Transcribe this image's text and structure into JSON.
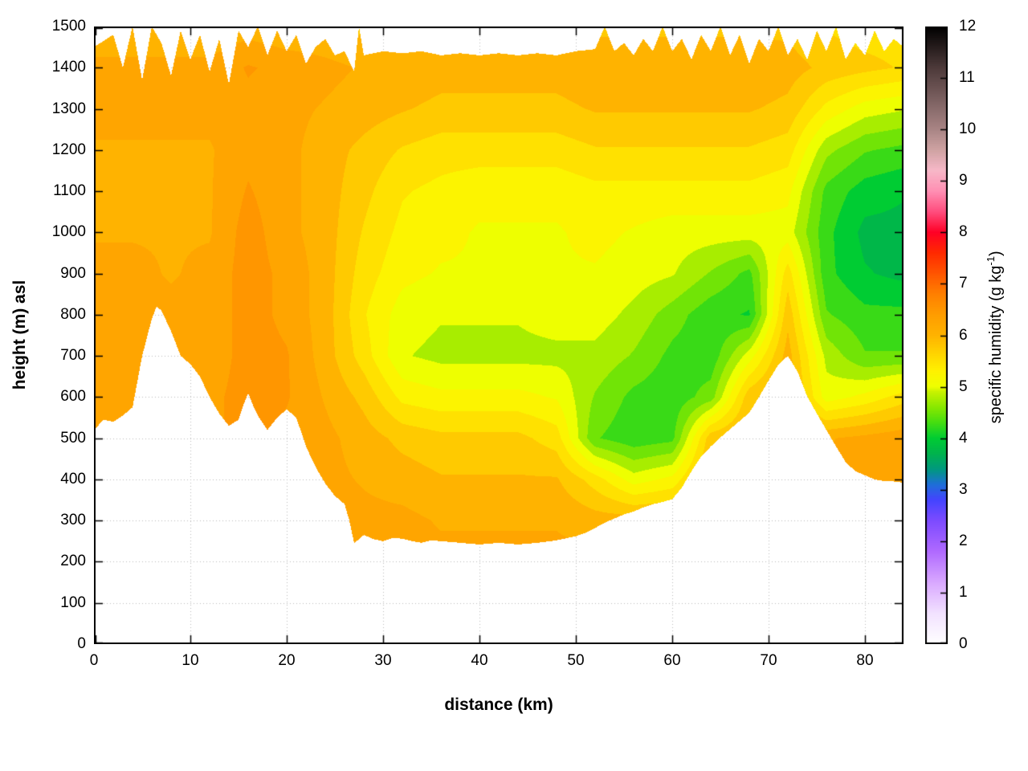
{
  "chart_data": {
    "type": "heatmap",
    "title": "",
    "xlabel": "distance (km)",
    "ylabel": "height (m) asl",
    "cblabel_prefix": "specific humidity (g kg",
    "cblabel_sup": "-1",
    "cblabel_suffix": ")",
    "xlim": [
      0,
      84
    ],
    "ylim": [
      0,
      1500
    ],
    "cblim": [
      0,
      12
    ],
    "grid": true,
    "legend_position": "right-colorbar",
    "x_ticks": [
      0,
      10,
      20,
      30,
      40,
      50,
      60,
      70,
      80
    ],
    "y_ticks": [
      0,
      100,
      200,
      300,
      400,
      500,
      600,
      700,
      800,
      900,
      1000,
      1100,
      1200,
      1300,
      1400,
      1500
    ],
    "cb_ticks": [
      0,
      1,
      2,
      3,
      4,
      5,
      6,
      7,
      8,
      9,
      10,
      11,
      12
    ],
    "band_interval_g_per_kg": 0.25,
    "x_km": [
      0,
      4,
      8,
      12,
      16,
      20,
      24,
      28,
      32,
      36,
      40,
      44,
      48,
      52,
      56,
      60,
      64,
      68,
      72,
      76,
      80,
      84
    ],
    "y_m": [
      0,
      100,
      200,
      300,
      400,
      500,
      600,
      700,
      800,
      900,
      1000,
      1100,
      1200,
      1300,
      1400,
      1500
    ],
    "humidity_g_per_kg": [
      [
        6.3,
        6.3,
        6.3,
        6.3,
        6.4,
        6.3,
        6.3,
        6.3,
        6.3,
        6.3,
        6.3,
        6.3,
        6.3,
        6.3,
        6.3,
        6.3,
        6.3,
        6.3,
        6.3,
        6.3,
        6.3,
        6.3
      ],
      [
        6.3,
        6.3,
        6.3,
        6.3,
        6.4,
        6.3,
        6.3,
        6.3,
        6.3,
        6.3,
        6.3,
        6.3,
        6.3,
        6.3,
        6.3,
        6.3,
        6.3,
        6.3,
        6.3,
        6.3,
        6.3,
        6.3
      ],
      [
        6.3,
        6.3,
        6.3,
        6.3,
        6.4,
        6.3,
        6.3,
        6.2,
        6.2,
        6.2,
        6.2,
        6.2,
        6.2,
        6.2,
        6.2,
        6.2,
        6.2,
        6.2,
        6.2,
        6.2,
        6.2,
        6.2
      ],
      [
        6.3,
        6.3,
        6.3,
        6.3,
        6.4,
        6.3,
        6.3,
        6.2,
        6.2,
        6.1,
        6.1,
        6.1,
        6.1,
        6.0,
        6.0,
        6.0,
        6.2,
        6.2,
        6.2,
        6.2,
        6.2,
        6.2
      ],
      [
        6.3,
        6.3,
        6.3,
        6.3,
        6.4,
        6.3,
        6.2,
        6.1,
        6.0,
        5.9,
        5.9,
        5.9,
        5.9,
        5.5,
        5.0,
        5.2,
        6.0,
        6.1,
        6.2,
        6.2,
        6.2,
        6.3
      ],
      [
        6.3,
        6.3,
        6.3,
        6.3,
        6.5,
        6.3,
        6.2,
        6.0,
        5.8,
        5.7,
        5.7,
        5.7,
        5.5,
        4.4,
        4.2,
        4.3,
        5.8,
        6.0,
        6.2,
        6.1,
        6.2,
        6.3
      ],
      [
        6.3,
        6.2,
        6.2,
        6.3,
        6.5,
        6.4,
        6.1,
        5.8,
        5.3,
        5.2,
        5.2,
        5.2,
        5.1,
        4.6,
        4.3,
        4.2,
        4.5,
        5.8,
        6.1,
        5.0,
        5.2,
        5.5
      ],
      [
        6.2,
        6.2,
        6.2,
        6.2,
        6.5,
        6.4,
        6.0,
        5.5,
        4.9,
        4.8,
        4.8,
        4.8,
        4.8,
        4.8,
        4.6,
        4.3,
        4.2,
        5.0,
        6.0,
        4.8,
        4.4,
        4.4
      ],
      [
        6.2,
        6.2,
        6.2,
        6.2,
        6.5,
        6.3,
        6.0,
        5.4,
        5.0,
        4.9,
        4.9,
        4.9,
        5.0,
        5.0,
        4.8,
        4.5,
        4.2,
        4.1,
        5.8,
        4.4,
        4.2,
        4.2
      ],
      [
        6.2,
        6.2,
        6.1,
        6.2,
        6.5,
        6.3,
        6.0,
        5.5,
        5.2,
        5.1,
        5.1,
        5.1,
        5.1,
        5.1,
        5.0,
        4.9,
        4.6,
        4.3,
        5.5,
        4.2,
        3.9,
        3.8
      ],
      [
        6.1,
        6.1,
        6.1,
        6.1,
        6.5,
        6.2,
        6.0,
        5.6,
        5.3,
        5.2,
        5.1,
        5.1,
        5.1,
        5.2,
        5.1,
        5.0,
        5.0,
        5.0,
        5.0,
        4.2,
        3.8,
        3.8
      ],
      [
        6.1,
        6.1,
        6.1,
        6.1,
        6.4,
        6.2,
        6.0,
        5.7,
        5.4,
        5.3,
        5.2,
        5.2,
        5.2,
        5.3,
        5.3,
        5.3,
        5.3,
        5.3,
        5.2,
        4.3,
        4.0,
        3.9
      ],
      [
        6.1,
        6.1,
        6.1,
        6.1,
        6.3,
        6.2,
        6.0,
        5.8,
        5.6,
        5.5,
        5.5,
        5.5,
        5.5,
        5.6,
        5.6,
        5.6,
        5.6,
        5.6,
        5.5,
        4.7,
        4.4,
        4.3
      ],
      [
        6.2,
        6.2,
        6.2,
        6.2,
        6.3,
        6.2,
        6.1,
        6.0,
        5.9,
        5.8,
        5.8,
        5.8,
        5.8,
        5.9,
        5.9,
        5.9,
        5.9,
        5.9,
        5.8,
        5.3,
        5.0,
        4.9
      ],
      [
        6.2,
        6.2,
        6.2,
        6.2,
        6.4,
        6.3,
        6.2,
        6.1,
        6.1,
        6.0,
        6.0,
        6.0,
        6.0,
        6.1,
        6.1,
        6.1,
        6.1,
        6.1,
        6.0,
        5.8,
        5.7,
        5.6
      ],
      [
        5.9,
        5.9,
        5.9,
        5.9,
        6.0,
        5.9,
        5.9,
        5.8,
        5.8,
        5.8,
        5.8,
        5.8,
        5.8,
        5.8,
        5.8,
        5.8,
        5.8,
        5.8,
        5.8,
        5.6,
        5.5,
        5.5
      ]
    ],
    "terrain_profile_m": [
      [
        0,
        520
      ],
      [
        1,
        545
      ],
      [
        2,
        540
      ],
      [
        3,
        555
      ],
      [
        4,
        575
      ],
      [
        5,
        700
      ],
      [
        6,
        790
      ],
      [
        6.5,
        820
      ],
      [
        7,
        810
      ],
      [
        8,
        760
      ],
      [
        9,
        700
      ],
      [
        10,
        680
      ],
      [
        11,
        650
      ],
      [
        12,
        600
      ],
      [
        13,
        560
      ],
      [
        14,
        530
      ],
      [
        15,
        545
      ],
      [
        15.5,
        580
      ],
      [
        16,
        610
      ],
      [
        16.5,
        580
      ],
      [
        17,
        555
      ],
      [
        18,
        520
      ],
      [
        19,
        550
      ],
      [
        20,
        570
      ],
      [
        21,
        550
      ],
      [
        22,
        480
      ],
      [
        23,
        430
      ],
      [
        24,
        390
      ],
      [
        25,
        360
      ],
      [
        26,
        340
      ],
      [
        26.5,
        300
      ],
      [
        27,
        245
      ],
      [
        28,
        265
      ],
      [
        29,
        255
      ],
      [
        30,
        250
      ],
      [
        31,
        258
      ],
      [
        32,
        256
      ],
      [
        33,
        250
      ],
      [
        34,
        246
      ],
      [
        35,
        252
      ],
      [
        36,
        250
      ],
      [
        38,
        246
      ],
      [
        40,
        242
      ],
      [
        42,
        246
      ],
      [
        44,
        242
      ],
      [
        46,
        246
      ],
      [
        48,
        252
      ],
      [
        50,
        262
      ],
      [
        51,
        270
      ],
      [
        52,
        282
      ],
      [
        53,
        295
      ],
      [
        54,
        305
      ],
      [
        55,
        315
      ],
      [
        56,
        322
      ],
      [
        57,
        332
      ],
      [
        58,
        340
      ],
      [
        59,
        345
      ],
      [
        60,
        352
      ],
      [
        61,
        380
      ],
      [
        62,
        420
      ],
      [
        63,
        455
      ],
      [
        64,
        480
      ],
      [
        65,
        502
      ],
      [
        66,
        522
      ],
      [
        67,
        542
      ],
      [
        68,
        562
      ],
      [
        69,
        600
      ],
      [
        70,
        640
      ],
      [
        71,
        678
      ],
      [
        72,
        700
      ],
      [
        73,
        662
      ],
      [
        74,
        602
      ],
      [
        75,
        560
      ],
      [
        76,
        520
      ],
      [
        77,
        480
      ],
      [
        78,
        442
      ],
      [
        79,
        420
      ],
      [
        80,
        410
      ],
      [
        81,
        400
      ],
      [
        82,
        396
      ],
      [
        83,
        395
      ],
      [
        84,
        392
      ]
    ],
    "upper_boundary_m": [
      [
        0,
        1450
      ],
      [
        2,
        1480
      ],
      [
        3,
        1400
      ],
      [
        4,
        1500
      ],
      [
        5,
        1370
      ],
      [
        6,
        1500
      ],
      [
        7,
        1460
      ],
      [
        8,
        1380
      ],
      [
        9,
        1490
      ],
      [
        10,
        1420
      ],
      [
        11,
        1480
      ],
      [
        12,
        1390
      ],
      [
        13,
        1470
      ],
      [
        14,
        1360
      ],
      [
        15,
        1490
      ],
      [
        16,
        1450
      ],
      [
        17,
        1500
      ],
      [
        18,
        1430
      ],
      [
        19,
        1490
      ],
      [
        20,
        1440
      ],
      [
        21,
        1480
      ],
      [
        22,
        1410
      ],
      [
        23,
        1450
      ],
      [
        24,
        1470
      ],
      [
        25,
        1430
      ],
      [
        26,
        1440
      ],
      [
        27,
        1390
      ],
      [
        27.5,
        1500
      ],
      [
        28,
        1430
      ],
      [
        30,
        1440
      ],
      [
        32,
        1435
      ],
      [
        34,
        1440
      ],
      [
        36,
        1430
      ],
      [
        38,
        1435
      ],
      [
        40,
        1430
      ],
      [
        42,
        1435
      ],
      [
        44,
        1430
      ],
      [
        46,
        1435
      ],
      [
        48,
        1430
      ],
      [
        50,
        1440
      ],
      [
        52,
        1445
      ],
      [
        53,
        1500
      ],
      [
        54,
        1440
      ],
      [
        55,
        1460
      ],
      [
        56,
        1430
      ],
      [
        57,
        1470
      ],
      [
        58,
        1440
      ],
      [
        59,
        1500
      ],
      [
        60,
        1440
      ],
      [
        61,
        1470
      ],
      [
        62,
        1420
      ],
      [
        63,
        1480
      ],
      [
        64,
        1440
      ],
      [
        65,
        1500
      ],
      [
        66,
        1430
      ],
      [
        67,
        1480
      ],
      [
        68,
        1410
      ],
      [
        69,
        1470
      ],
      [
        70,
        1440
      ],
      [
        71,
        1500
      ],
      [
        72,
        1430
      ],
      [
        73,
        1470
      ],
      [
        74,
        1420
      ],
      [
        75,
        1490
      ],
      [
        76,
        1440
      ],
      [
        77,
        1500
      ],
      [
        78,
        1420
      ],
      [
        79,
        1460
      ],
      [
        80,
        1430
      ],
      [
        81,
        1490
      ],
      [
        82,
        1440
      ],
      [
        83,
        1470
      ],
      [
        84,
        1450
      ]
    ],
    "color_scale_stops": [
      [
        0,
        "#ffffff"
      ],
      [
        0.6,
        "#f2e2ff"
      ],
      [
        1.2,
        "#d9a8ff"
      ],
      [
        1.8,
        "#b06aff"
      ],
      [
        2.4,
        "#7d4bff"
      ],
      [
        2.8,
        "#4444ff"
      ],
      [
        3.1,
        "#1e6fd9"
      ],
      [
        3.4,
        "#00997e"
      ],
      [
        3.7,
        "#00b34d"
      ],
      [
        4.0,
        "#00cc33"
      ],
      [
        4.3,
        "#44dd11"
      ],
      [
        4.6,
        "#88e800"
      ],
      [
        4.9,
        "#c8f200"
      ],
      [
        5.0,
        "#eeff00"
      ],
      [
        5.3,
        "#fff200"
      ],
      [
        5.6,
        "#ffd800"
      ],
      [
        6.0,
        "#ffb300"
      ],
      [
        6.4,
        "#ff9d00"
      ],
      [
        6.8,
        "#ff8000"
      ],
      [
        7.2,
        "#ff5500"
      ],
      [
        7.6,
        "#ff2a00"
      ],
      [
        8.0,
        "#ff0026"
      ],
      [
        8.4,
        "#ff4d7e"
      ],
      [
        8.8,
        "#ff8fb3"
      ],
      [
        9.2,
        "#f7b8c8"
      ],
      [
        9.6,
        "#cfa3a3"
      ],
      [
        10.0,
        "#a98585"
      ],
      [
        10.6,
        "#7a5f5f"
      ],
      [
        11.2,
        "#4d3a3a"
      ],
      [
        12,
        "#000000"
      ]
    ]
  }
}
